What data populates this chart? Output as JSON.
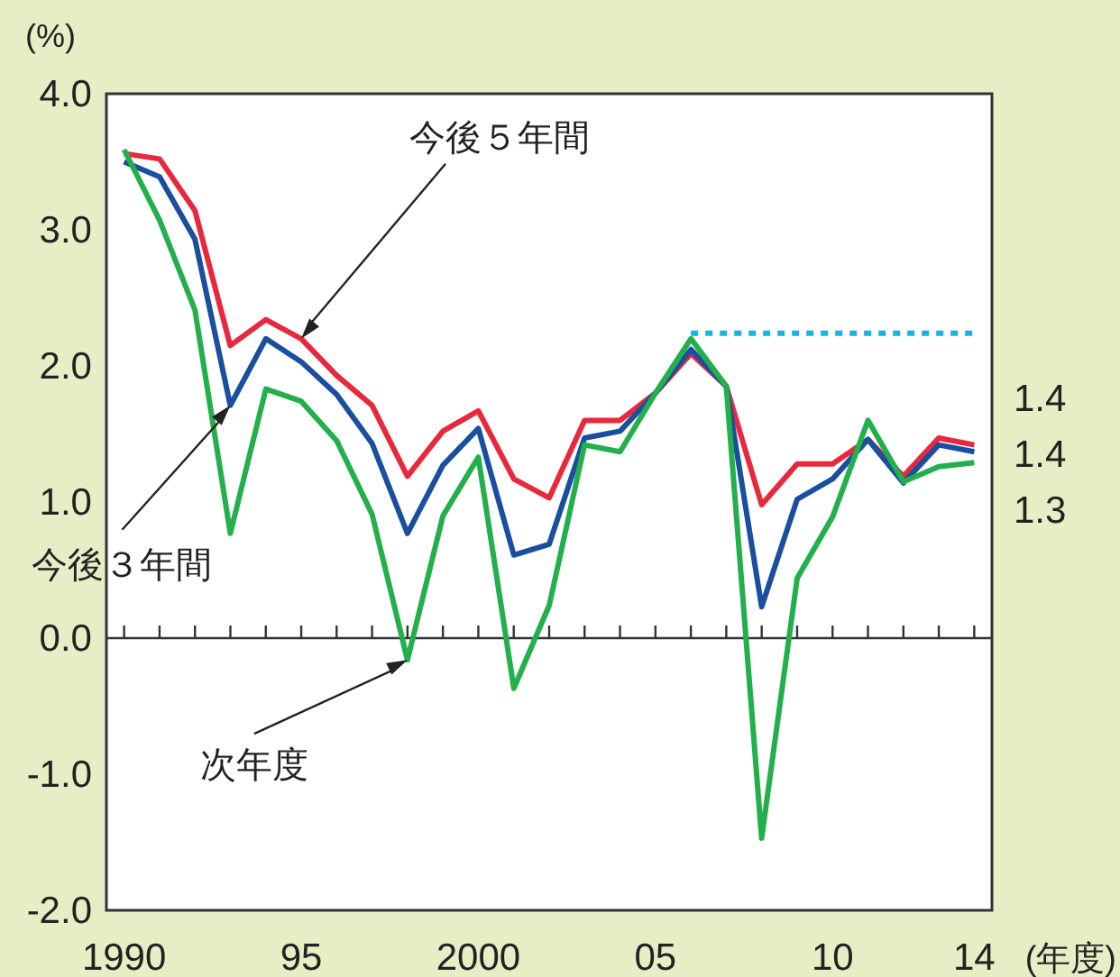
{
  "chart_data": {
    "type": "line",
    "ylabel": "(%)",
    "xlabel": "(年度)",
    "x": [
      1990,
      1991,
      1992,
      1993,
      1994,
      1995,
      1996,
      1997,
      1998,
      1999,
      2000,
      2001,
      2002,
      2003,
      2004,
      2005,
      2006,
      2007,
      2008,
      2009,
      2010,
      2011,
      2012,
      2013,
      2014
    ],
    "series": [
      {
        "color": "#e8283c",
        "values": [
          3.56,
          3.52,
          3.14,
          2.15,
          2.34,
          2.2,
          1.93,
          1.71,
          1.19,
          1.52,
          1.67,
          1.17,
          1.03,
          1.6,
          1.6,
          1.8,
          2.09,
          1.85,
          0.98,
          1.28,
          1.28,
          1.46,
          1.19,
          1.47,
          1.42
        ],
        "value_labels": [
          null,
          null,
          null,
          null,
          null,
          null,
          null,
          null,
          null,
          null,
          null,
          null,
          null,
          null,
          null,
          null,
          null,
          null,
          null,
          null,
          null,
          null,
          null,
          null,
          "1.4"
        ]
      },
      {
        "color": "#1a4fa0",
        "values": [
          3.5,
          3.39,
          2.93,
          1.71,
          2.2,
          2.03,
          1.79,
          1.43,
          0.77,
          1.27,
          1.54,
          0.61,
          0.69,
          1.47,
          1.52,
          1.8,
          2.12,
          1.85,
          0.23,
          1.02,
          1.17,
          1.46,
          1.14,
          1.42,
          1.37
        ],
        "value_labels": [
          null,
          null,
          null,
          null,
          null,
          null,
          null,
          null,
          null,
          null,
          null,
          null,
          null,
          null,
          null,
          null,
          null,
          null,
          null,
          null,
          null,
          null,
          null,
          null,
          "1.4"
        ]
      },
      {
        "color": "#22b04a",
        "values": [
          3.59,
          3.07,
          2.41,
          0.77,
          1.83,
          1.74,
          1.45,
          0.91,
          -0.16,
          0.9,
          1.33,
          -0.37,
          0.24,
          1.42,
          1.37,
          1.8,
          2.2,
          1.85,
          -1.47,
          0.44,
          0.89,
          1.6,
          1.15,
          1.26,
          1.29
        ],
        "value_labels": [
          null,
          null,
          null,
          null,
          null,
          null,
          null,
          null,
          null,
          null,
          null,
          null,
          null,
          null,
          null,
          null,
          null,
          null,
          null,
          null,
          null,
          null,
          null,
          null,
          "1.3"
        ]
      },
      {
        "color": "#1ab0e8",
        "line_style": "dotted",
        "x": [
          2006,
          2014
        ],
        "values": [
          2.24,
          2.24
        ]
      }
    ],
    "annotations": [
      {
        "text": "今後５年間",
        "x": 1995,
        "y": 2.2
      },
      {
        "text": "今後３年間",
        "x": 1993,
        "y": 1.71
      },
      {
        "text": "次年度",
        "x": 1998,
        "y": -0.16
      }
    ],
    "xlim": [
      1989.5,
      2014.5
    ],
    "ylim": [
      -2.0,
      4.0
    ],
    "xticks": [
      1990,
      {
        "value": 1991,
        "label": null
      },
      {
        "value": 1992,
        "label": null
      },
      {
        "value": 1993,
        "label": null
      },
      {
        "value": 1994,
        "label": null
      },
      {
        "value": 1995,
        "label": "95"
      },
      {
        "value": 1996,
        "label": null
      },
      {
        "value": 1997,
        "label": null
      },
      {
        "value": 1998,
        "label": null
      },
      {
        "value": 1999,
        "label": null
      },
      2000,
      {
        "value": 2001,
        "label": null
      },
      {
        "value": 2002,
        "label": null
      },
      {
        "value": 2003,
        "label": null
      },
      {
        "value": 2004,
        "label": null
      },
      {
        "value": 2005,
        "label": "05"
      },
      {
        "value": 2006,
        "label": null
      },
      {
        "value": 2007,
        "label": null
      },
      {
        "value": 2008,
        "label": null
      },
      {
        "value": 2009,
        "label": null
      },
      {
        "value": 2010,
        "label": "10"
      },
      {
        "value": 2011,
        "label": null
      },
      {
        "value": 2012,
        "label": null
      },
      {
        "value": 2013,
        "label": null
      },
      {
        "value": 2014,
        "label": "14"
      }
    ],
    "yticks": [
      {
        "value": -2,
        "label": "-2.0"
      },
      {
        "value": -1,
        "label": "-1.0"
      },
      {
        "value": 0,
        "label": "0.0"
      },
      {
        "value": 1,
        "label": "1.0"
      },
      {
        "value": 2,
        "label": "2.0"
      },
      {
        "value": 3,
        "label": "3.0"
      },
      {
        "value": 4,
        "label": "4.0"
      }
    ],
    "line_style": "solid"
  }
}
